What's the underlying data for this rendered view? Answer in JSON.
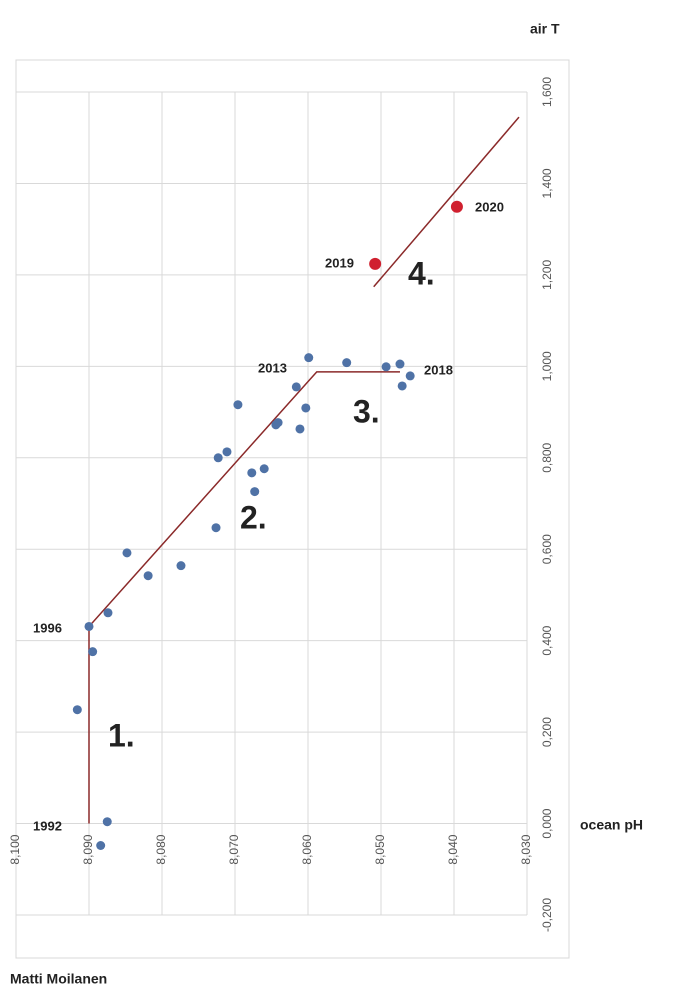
{
  "chart_data": {
    "type": "scatter",
    "y_axis_label": "air T",
    "x_axis_label": "ocean pH",
    "author": "Matti Moilanen",
    "xlim": [
      8.1,
      8.03
    ],
    "ylim": [
      -0.2,
      1.6
    ],
    "xticks": [
      {
        "value": 8.1,
        "label": "8,100"
      },
      {
        "value": 8.09,
        "label": "8,090"
      },
      {
        "value": 8.08,
        "label": "8,080"
      },
      {
        "value": 8.07,
        "label": "8,070"
      },
      {
        "value": 8.06,
        "label": "8,060"
      },
      {
        "value": 8.05,
        "label": "8,050"
      },
      {
        "value": 8.04,
        "label": "8,040"
      },
      {
        "value": 8.03,
        "label": "8,030"
      }
    ],
    "yticks": [
      {
        "value": -0.2,
        "label": "-0,200"
      },
      {
        "value": 0,
        "label": "0,000"
      },
      {
        "value": 0.2,
        "label": "0,200"
      },
      {
        "value": 0.4,
        "label": "0,400"
      },
      {
        "value": 0.6,
        "label": "0,600"
      },
      {
        "value": 0.8,
        "label": "0,800"
      },
      {
        "value": 1,
        "label": "1,000"
      },
      {
        "value": 1.2,
        "label": "1,200"
      },
      {
        "value": 1.4,
        "label": "1,400"
      },
      {
        "value": 1.6,
        "label": "1,600"
      }
    ],
    "grid": true,
    "series": [
      {
        "color": "#4f72a6",
        "x": [
          8.09,
          8.0895,
          8.0916,
          8.0875,
          8.0884,
          8.0874,
          8.0848,
          8.0819,
          8.0774,
          8.0726,
          8.0723,
          8.0711,
          8.0696,
          8.0677,
          8.066,
          8.0673,
          8.0644,
          8.0641,
          8.0616,
          8.0611,
          8.0603,
          8.0599,
          8.0547,
          8.0493,
          8.0474,
          8.0471,
          8.046
        ],
        "values": [
          0.431,
          0.376,
          0.249,
          0.004,
          -0.048,
          0.461,
          0.592,
          0.542,
          0.564,
          0.647,
          0.8,
          0.813,
          0.916,
          0.767,
          0.776,
          0.726,
          0.872,
          0.877,
          0.955,
          0.863,
          0.909,
          1.019,
          1.008,
          0.999,
          1.005,
          0.957,
          0.979
        ]
      },
      {
        "color": "#d0202f",
        "x": [
          8.0508,
          8.0396
        ],
        "values": [
          1.224,
          1.349
        ]
      }
    ],
    "trend_lines": [
      {
        "color": "#8b2a2a",
        "x": [
          8.09,
          8.09,
          8.0588,
          8.0474
        ],
        "values": [
          0,
          0.431,
          0.988,
          0.988
        ]
      },
      {
        "color": "#8b2a2a",
        "x": [
          8.051,
          8.0311
        ],
        "values": [
          1.174,
          1.545
        ]
      }
    ],
    "annotations": [
      "1996",
      "1992",
      "2013",
      "2018",
      "2019",
      "2020",
      "1.",
      "2.",
      "3.",
      "4."
    ]
  }
}
